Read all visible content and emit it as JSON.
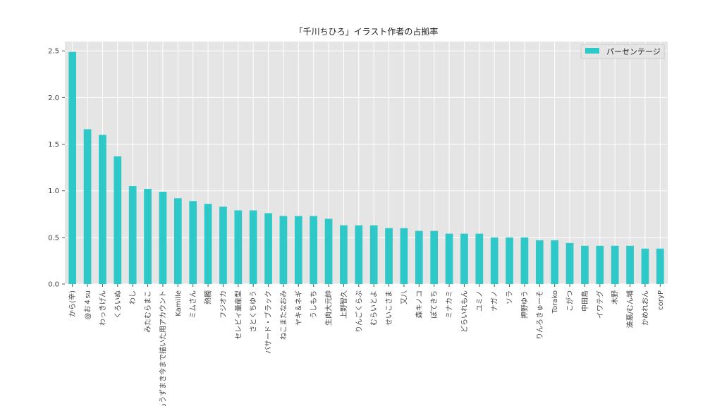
{
  "chart_data": {
    "type": "bar",
    "title": "「千川ちひろ」イラスト作者の占拠率",
    "xlabel": "",
    "ylabel": "",
    "ylim": [
      0,
      2.6
    ],
    "yticks": [
      "0.0",
      "0.5",
      "1.0",
      "1.5",
      "2.0",
      "2.5"
    ],
    "grid": true,
    "legend_position": "top-right",
    "bar_color": "#2ec8c8",
    "background_color": "#e5e5e5",
    "categories": [
      "から(辛)",
      "@お４su",
      "わっきげん",
      "くろいぬ",
      "わし",
      "みたむらまこ",
      "もうずまき今まで描いた用アカウント",
      "Kamille",
      "ミムさん",
      "熱髑",
      "フジオカ",
      "セレビィ量産型",
      "さとくちゆう",
      "バサード・ブラック",
      "ねこまたなおみ",
      "ヤキ＆ネギ",
      "うしもち",
      "生肉大元帥",
      "上野智久",
      "りんごくらぶ",
      "むらいとよ",
      "せいこさま",
      "又八",
      "森キノコ",
      "ぽてきち",
      "ミナカミ",
      "どらいれもん",
      "ユミノ",
      "ナガノ",
      "ソラ",
      "押野ゆう",
      "りんろきゅーそ",
      "Torako",
      "こがつ",
      "中田島",
      "イワテグ",
      "木野",
      "湊悪/むん埔",
      "かめれおん",
      "coryP"
    ],
    "series": [
      {
        "name": "パーセンテージ",
        "values": [
          2.49,
          1.66,
          1.6,
          1.37,
          1.05,
          1.02,
          0.99,
          0.92,
          0.89,
          0.86,
          0.83,
          0.79,
          0.79,
          0.76,
          0.73,
          0.73,
          0.73,
          0.7,
          0.63,
          0.63,
          0.63,
          0.6,
          0.6,
          0.57,
          0.57,
          0.54,
          0.54,
          0.54,
          0.5,
          0.5,
          0.5,
          0.47,
          0.47,
          0.44,
          0.41,
          0.41,
          0.41,
          0.41,
          0.38,
          0.38
        ]
      }
    ]
  }
}
